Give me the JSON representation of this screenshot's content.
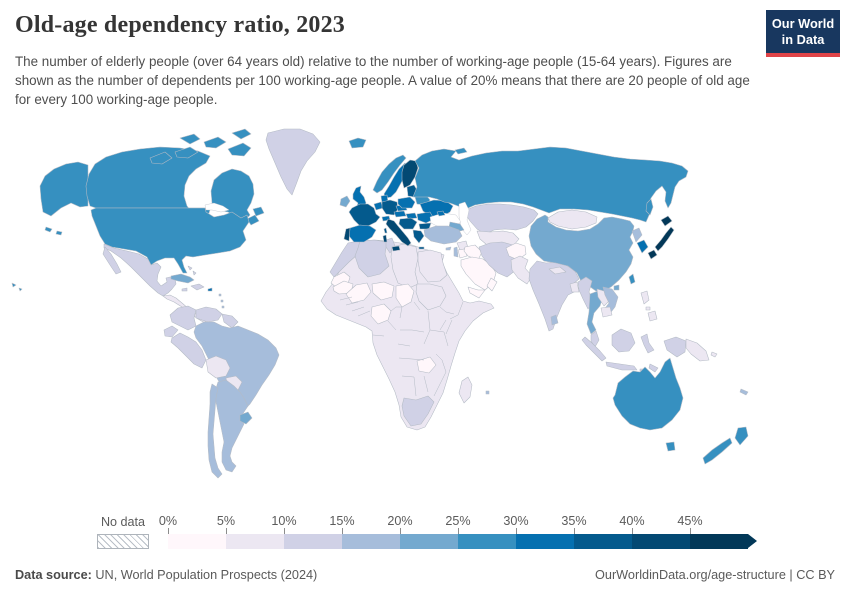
{
  "header": {
    "title": "Old-age dependency ratio, 2023",
    "subtitle": "The number of elderly people (over 64 years old) relative to the number of working-age people (15-64 years). Figures are shown as the number of dependents per 100 working-age people. A value of 20% means that there are 20 people of old age for every 100 working-age people."
  },
  "logo": {
    "line1": "Our World",
    "line2": "in Data",
    "bg_color": "#18375f",
    "accent_color": "#e04448"
  },
  "legend": {
    "no_data_label": "No data",
    "tick_labels": [
      "0%",
      "5%",
      "10%",
      "15%",
      "20%",
      "25%",
      "30%",
      "35%",
      "40%",
      "45%"
    ]
  },
  "footer": {
    "source_label": "Data source:",
    "source_text": " UN, World Population Prospects (2024)",
    "credit": "OurWorldinData.org/age-structure | CC BY"
  },
  "chart_data": {
    "type": "choropleth",
    "title": "Old-age dependency ratio, 2023",
    "year": 2023,
    "unit": "old-age dependents per 100 working-age people",
    "buckets": [
      "0-5%",
      "5-10%",
      "10-15%",
      "15-20%",
      "20-25%",
      "25-30%",
      "30-35%",
      "35-40%",
      "40-45%",
      "45%+"
    ],
    "palette": {
      "0-5%": "#fff7fb",
      "5-10%": "#ece7f2",
      "10-15%": "#d0d1e6",
      "15-20%": "#a6bddb",
      "20-25%": "#74a9cf",
      "25-30%": "#3690c0",
      "30-35%": "#0570b0",
      "35-40%": "#045a8d",
      "40-45%": "#034973",
      "45%+": "#023858"
    },
    "no_data_color": "hatched",
    "countries": [
      {
        "id": "canada",
        "name": "Canada",
        "bucket": "25-30%"
      },
      {
        "id": "usa",
        "name": "United States",
        "bucket": "25-30%"
      },
      {
        "id": "greenland",
        "name": "Greenland",
        "bucket": "10-15%"
      },
      {
        "id": "mexico",
        "name": "Mexico",
        "bucket": "10-15%"
      },
      {
        "id": "central-america",
        "name": "Central America",
        "bucket": "5-10%"
      },
      {
        "id": "cuba",
        "name": "Cuba",
        "bucket": "20-25%"
      },
      {
        "id": "hispaniola",
        "name": "Haiti / Dominican Republic",
        "bucket": "10-15%"
      },
      {
        "id": "jamaica",
        "name": "Jamaica",
        "bucket": "10-15%"
      },
      {
        "id": "puerto-rico",
        "name": "Puerto Rico",
        "bucket": "30-35%"
      },
      {
        "id": "bahamas",
        "name": "Bahamas",
        "bucket": "10-15%"
      },
      {
        "id": "lesser-antilles",
        "name": "Lesser Antilles",
        "bucket": "15-20%"
      },
      {
        "id": "colombia",
        "name": "Colombia",
        "bucket": "10-15%"
      },
      {
        "id": "venezuela",
        "name": "Venezuela",
        "bucket": "10-15%"
      },
      {
        "id": "guianas",
        "name": "Guyana / Suriname",
        "bucket": "10-15%"
      },
      {
        "id": "ecuador",
        "name": "Ecuador",
        "bucket": "10-15%"
      },
      {
        "id": "peru",
        "name": "Peru",
        "bucket": "10-15%"
      },
      {
        "id": "brazil",
        "name": "Brazil",
        "bucket": "15-20%"
      },
      {
        "id": "bolivia",
        "name": "Bolivia",
        "bucket": "5-10%"
      },
      {
        "id": "paraguay",
        "name": "Paraguay",
        "bucket": "5-10%"
      },
      {
        "id": "uruguay",
        "name": "Uruguay",
        "bucket": "20-25%"
      },
      {
        "id": "argentina",
        "name": "Argentina",
        "bucket": "15-20%"
      },
      {
        "id": "chile",
        "name": "Chile",
        "bucket": "15-20%"
      },
      {
        "id": "iceland",
        "name": "Iceland",
        "bucket": "25-30%"
      },
      {
        "id": "ireland",
        "name": "Ireland",
        "bucket": "20-25%"
      },
      {
        "id": "uk",
        "name": "United Kingdom",
        "bucket": "30-35%"
      },
      {
        "id": "norway",
        "name": "Norway",
        "bucket": "25-30%"
      },
      {
        "id": "sweden",
        "name": "Sweden",
        "bucket": "30-35%"
      },
      {
        "id": "finland",
        "name": "Finland",
        "bucket": "40-45%"
      },
      {
        "id": "denmark",
        "name": "Denmark",
        "bucket": "30-35%"
      },
      {
        "id": "benelux",
        "name": "Netherlands / Belgium",
        "bucket": "30-35%"
      },
      {
        "id": "germany",
        "name": "Germany",
        "bucket": "35-40%"
      },
      {
        "id": "france",
        "name": "France",
        "bucket": "35-40%"
      },
      {
        "id": "spain",
        "name": "Spain",
        "bucket": "30-35%"
      },
      {
        "id": "portugal",
        "name": "Portugal",
        "bucket": "40-45%"
      },
      {
        "id": "italy",
        "name": "Italy",
        "bucket": "40-45%"
      },
      {
        "id": "switzerland",
        "name": "Switzerland",
        "bucket": "30-35%"
      },
      {
        "id": "czechia",
        "name": "Czechia",
        "bucket": "30-35%"
      },
      {
        "id": "austria",
        "name": "Austria",
        "bucket": "30-35%"
      },
      {
        "id": "poland",
        "name": "Poland",
        "bucket": "30-35%"
      },
      {
        "id": "baltics",
        "name": "Baltic states",
        "bucket": "35-40%"
      },
      {
        "id": "belarus",
        "name": "Belarus",
        "bucket": "25-30%"
      },
      {
        "id": "ukraine",
        "name": "Ukraine",
        "bucket": "30-35%"
      },
      {
        "id": "romania",
        "name": "Romania",
        "bucket": "30-35%"
      },
      {
        "id": "hungary",
        "name": "Hungary",
        "bucket": "30-35%"
      },
      {
        "id": "balkans",
        "name": "Western Balkans",
        "bucket": "35-40%"
      },
      {
        "id": "bulgaria",
        "name": "Bulgaria",
        "bucket": "35-40%"
      },
      {
        "id": "greece",
        "name": "Greece",
        "bucket": "35-40%"
      },
      {
        "id": "russia",
        "name": "Russia",
        "bucket": "25-30%"
      },
      {
        "id": "kazakhstan",
        "name": "Kazakhstan",
        "bucket": "10-15%"
      },
      {
        "id": "central-asia",
        "name": "Central Asia",
        "bucket": "5-10%"
      },
      {
        "id": "caucasus",
        "name": "Caucasus",
        "bucket": "20-25%"
      },
      {
        "id": "turkey",
        "name": "Turkey",
        "bucket": "15-20%"
      },
      {
        "id": "cyprus",
        "name": "Cyprus",
        "bucket": "15-20%"
      },
      {
        "id": "syria",
        "name": "Syria",
        "bucket": "5-10%"
      },
      {
        "id": "iraq",
        "name": "Iraq",
        "bucket": "0-5%"
      },
      {
        "id": "israel",
        "name": "Israel / Lebanon",
        "bucket": "15-20%"
      },
      {
        "id": "jordan",
        "name": "Jordan",
        "bucket": "0-5%"
      },
      {
        "id": "saudi-arabia",
        "name": "Saudi Arabia",
        "bucket": "0-5%"
      },
      {
        "id": "yemen",
        "name": "Yemen",
        "bucket": "0-5%"
      },
      {
        "id": "oman",
        "name": "Oman",
        "bucket": "0-5%"
      },
      {
        "id": "iran",
        "name": "Iran",
        "bucket": "10-15%"
      },
      {
        "id": "afghanistan",
        "name": "Afghanistan",
        "bucket": "0-5%"
      },
      {
        "id": "pakistan",
        "name": "Pakistan",
        "bucket": "5-10%"
      },
      {
        "id": "india",
        "name": "India",
        "bucket": "10-15%"
      },
      {
        "id": "nepal",
        "name": "Nepal",
        "bucket": "5-10%"
      },
      {
        "id": "bangladesh",
        "name": "Bangladesh",
        "bucket": "5-10%"
      },
      {
        "id": "sri-lanka",
        "name": "Sri Lanka",
        "bucket": "15-20%"
      },
      {
        "id": "china",
        "name": "China",
        "bucket": "20-25%"
      },
      {
        "id": "mongolia",
        "name": "Mongolia",
        "bucket": "5-10%"
      },
      {
        "id": "north-korea",
        "name": "North Korea",
        "bucket": "15-20%"
      },
      {
        "id": "south-korea",
        "name": "South Korea",
        "bucket": "30-35%"
      },
      {
        "id": "japan",
        "name": "Japan",
        "bucket": "45%+"
      },
      {
        "id": "taiwan",
        "name": "Taiwan",
        "bucket": "25-30%"
      },
      {
        "id": "myanmar",
        "name": "Myanmar",
        "bucket": "10-15%"
      },
      {
        "id": "thailand",
        "name": "Thailand",
        "bucket": "20-25%"
      },
      {
        "id": "laos",
        "name": "Laos",
        "bucket": "5-10%"
      },
      {
        "id": "vietnam",
        "name": "Vietnam",
        "bucket": "15-20%"
      },
      {
        "id": "cambodia",
        "name": "Cambodia",
        "bucket": "5-10%"
      },
      {
        "id": "malaysia",
        "name": "Malaysia",
        "bucket": "10-15%"
      },
      {
        "id": "indonesia",
        "name": "Indonesia",
        "bucket": "10-15%"
      },
      {
        "id": "philippines",
        "name": "Philippines",
        "bucket": "5-10%"
      },
      {
        "id": "png",
        "name": "Papua New Guinea",
        "bucket": "5-10%"
      },
      {
        "id": "australia",
        "name": "Australia",
        "bucket": "25-30%"
      },
      {
        "id": "new-zealand",
        "name": "New Zealand",
        "bucket": "25-30%"
      },
      {
        "id": "new-caledonia",
        "name": "New Caledonia",
        "bucket": "15-20%"
      },
      {
        "id": "africa-other",
        "name": "Sub-Saharan Africa (various)",
        "bucket": "5-10%"
      },
      {
        "id": "western-sahara",
        "name": "Western Sahara",
        "bucket": "0-5%"
      },
      {
        "id": "morocco",
        "name": "Morocco",
        "bucket": "10-15%"
      },
      {
        "id": "algeria",
        "name": "Algeria",
        "bucket": "10-15%"
      },
      {
        "id": "tunisia",
        "name": "Tunisia",
        "bucket": "10-15%"
      },
      {
        "id": "libya",
        "name": "Libya",
        "bucket": "5-10%"
      },
      {
        "id": "egypt",
        "name": "Egypt",
        "bucket": "5-10%"
      },
      {
        "id": "mauritania",
        "name": "Mauritania",
        "bucket": "0-5%"
      },
      {
        "id": "mali",
        "name": "Mali",
        "bucket": "0-5%"
      },
      {
        "id": "niger",
        "name": "Niger",
        "bucket": "0-5%"
      },
      {
        "id": "chad",
        "name": "Chad",
        "bucket": "0-5%"
      },
      {
        "id": "sudan",
        "name": "Sudan",
        "bucket": "5-10%"
      },
      {
        "id": "nigeria",
        "name": "Nigeria",
        "bucket": "0-5%"
      },
      {
        "id": "zambia",
        "name": "Zambia",
        "bucket": "0-5%"
      },
      {
        "id": "south-africa",
        "name": "South Africa",
        "bucket": "10-15%"
      },
      {
        "id": "madagascar",
        "name": "Madagascar",
        "bucket": "5-10%"
      },
      {
        "id": "mauritius",
        "name": "Mauritius",
        "bucket": "15-20%"
      }
    ]
  }
}
